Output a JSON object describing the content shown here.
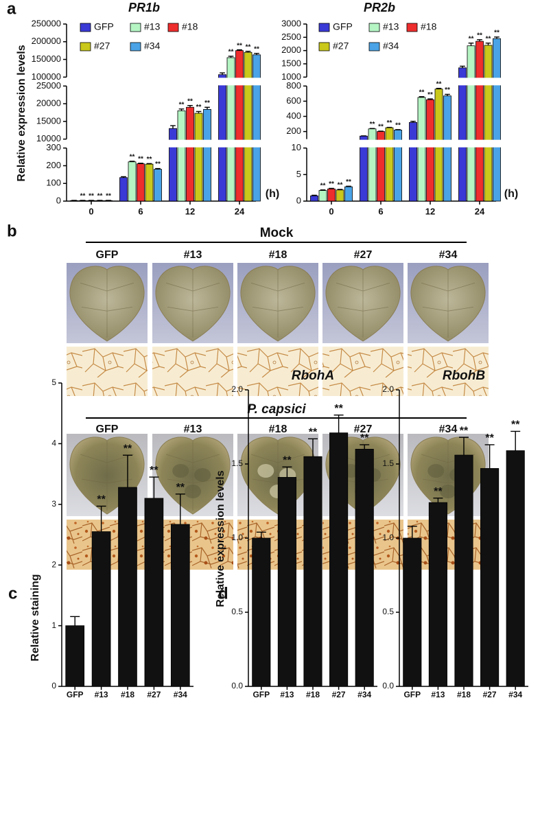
{
  "panel_labels": [
    "a",
    "b",
    "c",
    "d"
  ],
  "panel_b": {
    "groups": [
      {
        "title": "Mock",
        "columns": [
          "GFP",
          "#13",
          "#18",
          "#27",
          "#34"
        ]
      },
      {
        "title": "P. capsici",
        "columns": [
          "GFP",
          "#13",
          "#18",
          "#27",
          "#34"
        ]
      }
    ]
  },
  "chart_data": [
    {
      "type": "bar",
      "title": "PR1b",
      "ylabel": "Relative expression levels",
      "xlabel": "(h)",
      "categories": [
        "0",
        "6",
        "12",
        "24"
      ],
      "y_segments": [
        {
          "ylim": [
            0,
            300
          ],
          "yticks": [
            0,
            100,
            200,
            300
          ]
        },
        {
          "ylim": [
            10000,
            25000
          ],
          "yticks": [
            10000,
            15000,
            20000,
            25000
          ]
        },
        {
          "ylim": [
            100000,
            250000
          ],
          "yticks": [
            100000,
            150000,
            200000,
            250000
          ]
        }
      ],
      "series": [
        {
          "name": "GFP",
          "color": "#3a3ad6",
          "values": [
            3,
            133,
            13000,
            107000
          ],
          "errors": [
            1,
            5,
            800,
            5000
          ]
        },
        {
          "name": "#13",
          "color": "#b5f5c4",
          "values": [
            3,
            222,
            18000,
            155000
          ],
          "errors": [
            1,
            3,
            500,
            4000
          ],
          "significance": [
            "**",
            "**",
            "**",
            "**"
          ]
        },
        {
          "name": "#18",
          "color": "#ee2d2d",
          "values": [
            3,
            211,
            19000,
            175000
          ],
          "errors": [
            1,
            3,
            500,
            2000
          ],
          "significance": [
            "**",
            "**",
            "**",
            "**"
          ]
        },
        {
          "name": "#27",
          "color": "#c9c81b",
          "values": [
            3,
            209,
            17300,
            170000
          ],
          "errors": [
            1,
            3,
            500,
            3000
          ],
          "significance": [
            "**",
            "**",
            "**",
            "**"
          ]
        },
        {
          "name": "#34",
          "color": "#4aa3e6",
          "values": [
            3,
            180,
            18400,
            163000
          ],
          "errors": [
            1,
            4,
            600,
            4000
          ],
          "significance": [
            "**",
            "**",
            "**",
            "**"
          ]
        }
      ]
    },
    {
      "type": "bar",
      "title": "PR2b",
      "xlabel": "(h)",
      "categories": [
        "0",
        "6",
        "12",
        "24"
      ],
      "y_segments": [
        {
          "ylim": [
            0,
            10
          ],
          "yticks": [
            0,
            5,
            10
          ]
        },
        {
          "ylim": [
            100,
            800
          ],
          "yticks": [
            200,
            400,
            600,
            800
          ]
        },
        {
          "ylim": [
            1000,
            3000
          ],
          "yticks": [
            1000,
            1500,
            2000,
            2500,
            3000
          ]
        }
      ],
      "series": [
        {
          "name": "GFP",
          "color": "#3a3ad6",
          "values": [
            1.0,
            140,
            320,
            1350
          ],
          "errors": [
            0.1,
            3,
            15,
            60
          ]
        },
        {
          "name": "#13",
          "color": "#b5f5c4",
          "values": [
            2.0,
            235,
            650,
            2180
          ],
          "errors": [
            0.1,
            5,
            10,
            100
          ],
          "significance": [
            "**",
            "**",
            "**",
            "**"
          ]
        },
        {
          "name": "#18",
          "color": "#ee2d2d",
          "values": [
            2.3,
            200,
            620,
            2350
          ],
          "errors": [
            0.1,
            5,
            10,
            60
          ],
          "significance": [
            "**",
            "**",
            "**",
            "**"
          ]
        },
        {
          "name": "#27",
          "color": "#c9c81b",
          "values": [
            2.1,
            250,
            760,
            2200
          ],
          "errors": [
            0.1,
            5,
            10,
            80
          ],
          "significance": [
            "**",
            "**",
            "**",
            "**"
          ]
        },
        {
          "name": "#34",
          "color": "#4aa3e6",
          "values": [
            2.7,
            220,
            670,
            2450
          ],
          "errors": [
            0.1,
            5,
            20,
            60
          ],
          "significance": [
            "**",
            "**",
            "**",
            "**"
          ]
        }
      ]
    },
    {
      "type": "bar",
      "ylabel": "Relative staining",
      "categories": [
        "GFP",
        "#13",
        "#18",
        "#27",
        "#34"
      ],
      "ylim": [
        0,
        5
      ],
      "yticks": [
        0,
        1,
        2,
        3,
        4,
        5
      ],
      "series": [
        {
          "color": "#111111",
          "values": [
            1.0,
            2.55,
            3.28,
            3.1,
            2.67
          ],
          "errors": [
            0.15,
            0.42,
            0.53,
            0.35,
            0.5
          ],
          "significance": [
            null,
            "**",
            "**",
            "**",
            "**"
          ]
        }
      ]
    },
    {
      "type": "bar",
      "title": "RbohA",
      "ylabel": "Relative expression levels",
      "categories": [
        "GFP",
        "#13",
        "#18",
        "#27",
        "#34"
      ],
      "ylim": [
        0,
        2
      ],
      "yticks": [
        {
          "value": 0,
          "label": "0.0"
        },
        {
          "value": 0.5,
          "label": "0.5"
        },
        {
          "value": 1,
          "label": "1.0"
        },
        {
          "value": 1.5,
          "label": "1.5"
        },
        {
          "value": 2,
          "label": "2.0"
        }
      ],
      "series": [
        {
          "color": "#111111",
          "values": [
            1.0,
            1.41,
            1.55,
            1.71,
            1.6
          ],
          "errors": [
            0.04,
            0.07,
            0.12,
            0.12,
            0.03
          ],
          "significance": [
            null,
            "**",
            "**",
            "**",
            "**"
          ]
        }
      ]
    },
    {
      "type": "bar",
      "title": "RbohB",
      "categories": [
        "GFP",
        "#13",
        "#18",
        "#27",
        "#34"
      ],
      "ylim": [
        0,
        2
      ],
      "yticks": [
        {
          "value": 0,
          "label": "0.0"
        },
        {
          "value": 0.5,
          "label": "0.5"
        },
        {
          "value": 1,
          "label": "1.0"
        },
        {
          "value": 1.5,
          "label": "1.5"
        },
        {
          "value": 2,
          "label": "2.0"
        }
      ],
      "series": [
        {
          "color": "#111111",
          "values": [
            1.0,
            1.24,
            1.56,
            1.47,
            1.59
          ],
          "errors": [
            0.08,
            0.03,
            0.12,
            0.16,
            0.13
          ],
          "significance": [
            null,
            "**",
            "**",
            "**",
            "**"
          ]
        }
      ]
    }
  ]
}
